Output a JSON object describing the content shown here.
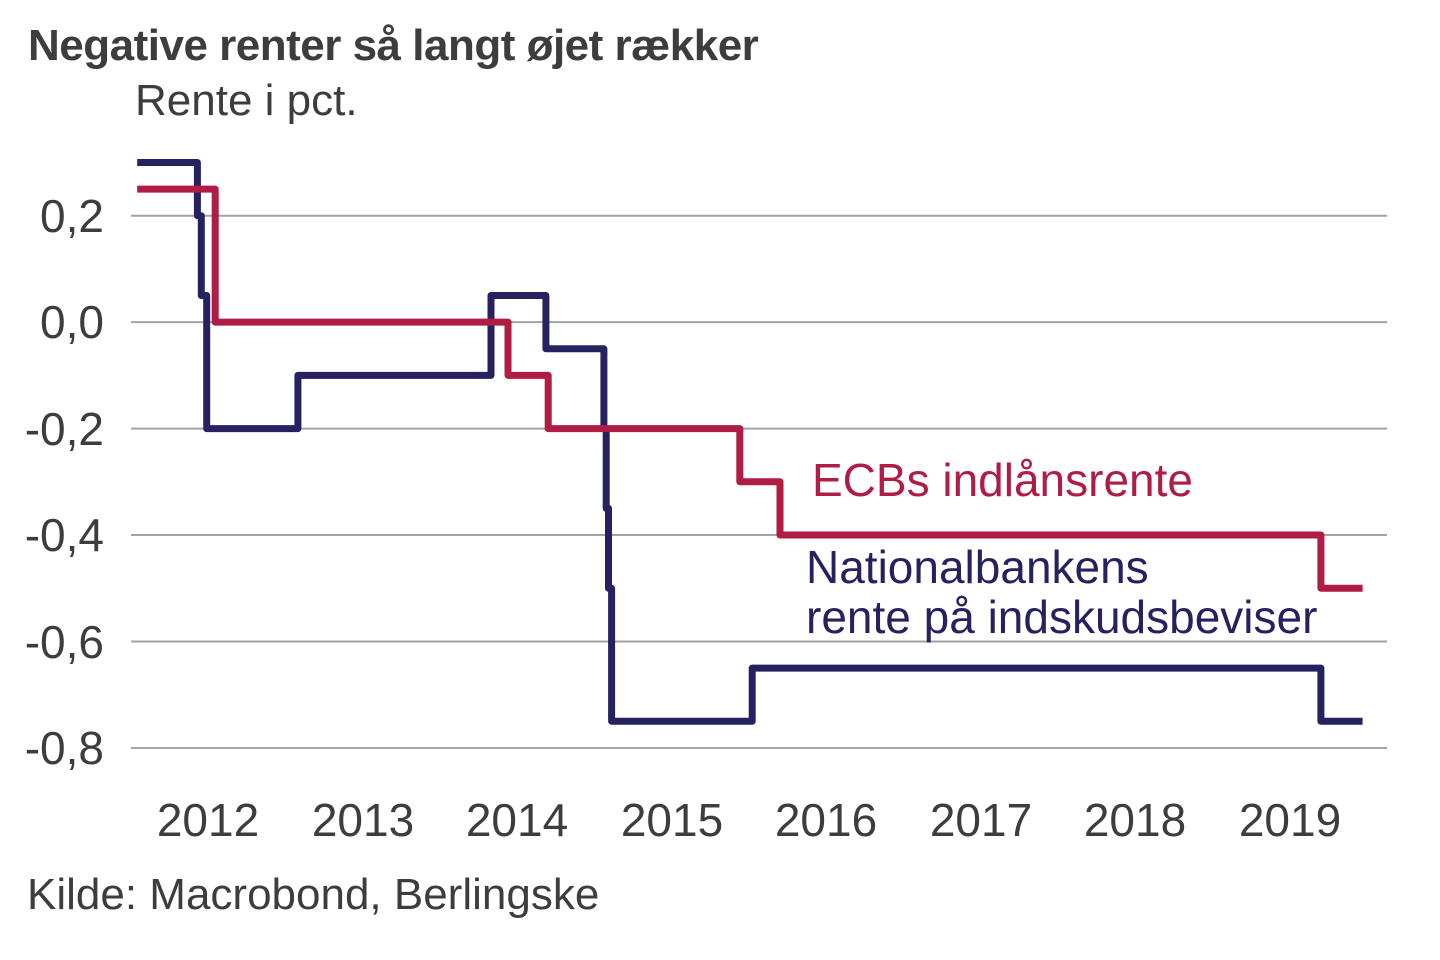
{
  "title": "Negative renter så langt øjet rækker",
  "source": "Kilde: Macrobond, Berlingske",
  "colors": {
    "background": "#ffffff",
    "text": "#3d3d3d",
    "grid": "#a3a3a3",
    "ecb_red": "#b01c44",
    "nationalbank_navy": "#262260"
  },
  "chart_data": {
    "type": "line",
    "step": true,
    "title": "Negative renter så langt øjet rækker",
    "axis_title": "Rente i pct.",
    "xlabel": "",
    "ylabel": "Rente i pct.",
    "grid": "horizontal gridlines only",
    "legend_position": "inline text annotations on plot",
    "x_range": [
      2012.0,
      2020.128
    ],
    "y_range": [
      -0.879,
      0.361
    ],
    "x_ticks": [
      {
        "year": 2012,
        "label": "2012"
      },
      {
        "year": 2013,
        "label": "2013"
      },
      {
        "year": 2014,
        "label": "2014"
      },
      {
        "year": 2015,
        "label": "2015"
      },
      {
        "year": 2016,
        "label": "2016"
      },
      {
        "year": 2017,
        "label": "2017"
      },
      {
        "year": 2018,
        "label": "2018"
      },
      {
        "year": 2019,
        "label": "2019"
      }
    ],
    "y_ticks": [
      {
        "value": 0.2,
        "label": "0,2"
      },
      {
        "value": 0.0,
        "label": "0,0"
      },
      {
        "value": -0.2,
        "label": "-0,2"
      },
      {
        "value": -0.4,
        "label": "-0,4"
      },
      {
        "value": -0.6,
        "label": "-0,6"
      },
      {
        "value": -0.8,
        "label": "-0,8"
      }
    ],
    "legend": {
      "ecb_label": "ECBs indlånsrente",
      "nationalbank_label_line1": "Nationalbankens",
      "nationalbank_label_line2": "rente på indskudsbeviser"
    },
    "series": [
      {
        "id": "nationalbank",
        "name": "Nationalbankens rente på indskudsbeviser",
        "color": "#262260",
        "points": [
          [
            2012.04,
            0.3
          ],
          [
            2012.43,
            0.2
          ],
          [
            2012.455,
            0.05
          ],
          [
            2012.49,
            -0.2
          ],
          [
            2013.08,
            -0.1
          ],
          [
            2014.33,
            0.05
          ],
          [
            2014.685,
            -0.05
          ],
          [
            2015.06,
            -0.2
          ],
          [
            2015.075,
            -0.35
          ],
          [
            2015.09,
            -0.5
          ],
          [
            2015.11,
            -0.75
          ],
          [
            2016.02,
            -0.65
          ],
          [
            2019.7,
            -0.75
          ]
        ],
        "end_x": 2019.97
      },
      {
        "id": "ecb",
        "name": "ECBs indlånsrente",
        "color": "#b01c44",
        "points": [
          [
            2012.04,
            0.25
          ],
          [
            2012.545,
            0.0
          ],
          [
            2014.44,
            -0.1
          ],
          [
            2014.7,
            -0.2
          ],
          [
            2015.94,
            -0.3
          ],
          [
            2016.2,
            -0.4
          ],
          [
            2019.7,
            -0.5
          ]
        ],
        "end_x": 2019.97
      }
    ]
  }
}
